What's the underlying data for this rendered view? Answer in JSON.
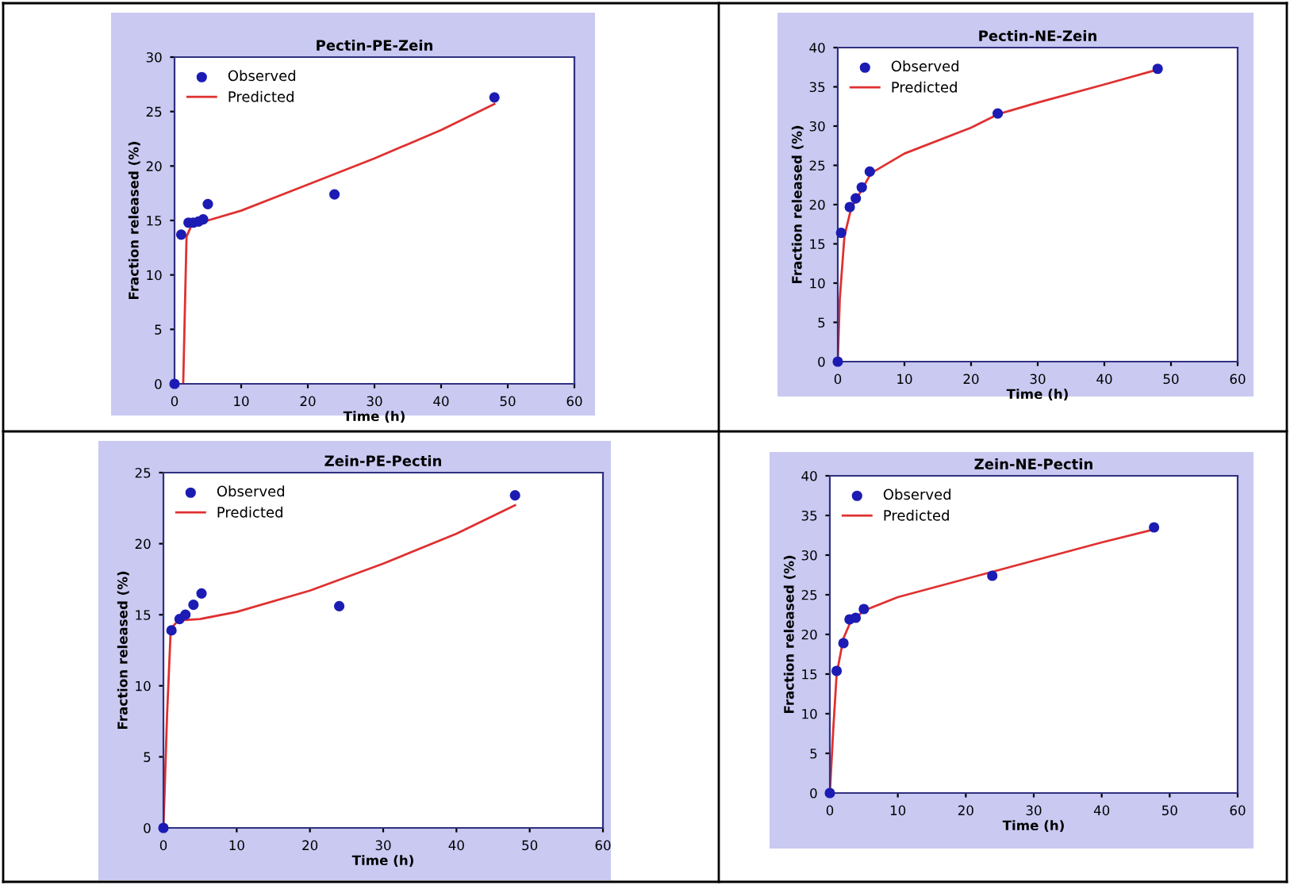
{
  "chart_data": [
    {
      "type": "scatter",
      "title": "Pectin-PE-Zein",
      "xlabel": "Time (h)",
      "ylabel": "Fraction released (%)",
      "xlim": [
        0,
        60
      ],
      "xticks": [
        0,
        10,
        20,
        30,
        40,
        50,
        60
      ],
      "ylim": [
        0,
        30
      ],
      "yticks": [
        0,
        5,
        10,
        15,
        20,
        25,
        30
      ],
      "legend": "top left",
      "grid": false,
      "series": [
        {
          "name": "Observed",
          "marker": "circle",
          "color": "#1c1cb4",
          "x": [
            0,
            1,
            2.1,
            2.8,
            3.6,
            4.3,
            5,
            24,
            48
          ],
          "values": [
            0,
            13.7,
            14.8,
            14.8,
            14.9,
            15.1,
            16.5,
            17.4,
            26.3
          ]
        },
        {
          "name": "Predicted",
          "type": "line",
          "line_style": "solid",
          "color": "#e03030",
          "x": [
            1.3,
            1.8,
            2.5,
            5,
            10,
            20,
            30,
            40,
            48
          ],
          "values": [
            0,
            13.5,
            14.5,
            15,
            15.9,
            18.3,
            20.7,
            23.3,
            25.7
          ]
        }
      ]
    },
    {
      "type": "scatter",
      "title": "Pectin-NE-Zein",
      "xlabel": "Time (h)",
      "ylabel": "Fraction released (%)",
      "xlim": [
        0,
        60
      ],
      "xticks": [
        0,
        10,
        20,
        30,
        40,
        50,
        60
      ],
      "ylim": [
        0,
        40
      ],
      "yticks": [
        0,
        5,
        10,
        15,
        20,
        25,
        30,
        35,
        40
      ],
      "legend": "top left",
      "grid": false,
      "series": [
        {
          "name": "Observed",
          "marker": "circle",
          "color": "#1c1cb4",
          "x": [
            0,
            0.5,
            1.8,
            2.7,
            3.6,
            4.8,
            24,
            48
          ],
          "values": [
            0,
            16.4,
            19.7,
            20.8,
            22.2,
            24.2,
            31.6,
            37.3
          ]
        },
        {
          "name": "Predicted",
          "type": "line",
          "line_style": "solid",
          "color": "#e03030",
          "x": [
            0,
            0.3,
            1,
            2,
            5,
            10,
            20,
            24,
            30,
            40,
            48
          ],
          "values": [
            0,
            8,
            16,
            19.5,
            24,
            26.5,
            29.8,
            31.5,
            33,
            35.3,
            37.2
          ]
        }
      ]
    },
    {
      "type": "scatter",
      "title": "Zein-PE-Pectin",
      "xlabel": "Time (h)",
      "ylabel": "Fraction released (%)",
      "xlim": [
        0,
        60
      ],
      "xticks": [
        0,
        10,
        20,
        30,
        40,
        50,
        60
      ],
      "ylim": [
        0,
        25
      ],
      "yticks": [
        0,
        5,
        10,
        15,
        20,
        25
      ],
      "legend": "top left",
      "grid": false,
      "series": [
        {
          "name": "Observed",
          "marker": "circle",
          "color": "#1c1cb4",
          "x": [
            0,
            1.1,
            2.2,
            3,
            4.1,
            5.2,
            24,
            48
          ],
          "values": [
            0,
            13.9,
            14.7,
            15,
            15.7,
            16.5,
            15.6,
            23.4
          ]
        },
        {
          "name": "Predicted",
          "type": "line",
          "line_style": "solid",
          "color": "#e03030",
          "x": [
            0,
            0.5,
            1,
            2,
            5,
            10,
            20,
            30,
            40,
            48
          ],
          "values": [
            0,
            8,
            14,
            14.6,
            14.7,
            15.2,
            16.7,
            18.6,
            20.7,
            22.7
          ]
        }
      ]
    },
    {
      "type": "scatter",
      "title": "Zein-NE-Pectin",
      "xlabel": "Time (h)",
      "ylabel": "Fraction released (%)",
      "xlim": [
        0,
        60
      ],
      "xticks": [
        0,
        10,
        20,
        30,
        40,
        50,
        60
      ],
      "ylim": [
        0,
        40
      ],
      "yticks": [
        0,
        5,
        10,
        15,
        20,
        25,
        30,
        35,
        40
      ],
      "legend": "top left",
      "grid": false,
      "series": [
        {
          "name": "Observed",
          "marker": "circle",
          "color": "#1c1cb4",
          "x": [
            0,
            1,
            2,
            2.9,
            3.8,
            5,
            23.9,
            47.7
          ],
          "values": [
            0,
            15.4,
            18.9,
            21.9,
            22.1,
            23.2,
            27.4,
            33.5
          ]
        },
        {
          "name": "Predicted",
          "type": "line",
          "line_style": "solid",
          "color": "#e03030",
          "x": [
            0,
            0.5,
            1,
            2,
            3,
            5,
            10,
            20,
            30,
            40,
            48
          ],
          "values": [
            0,
            8,
            15,
            19.5,
            21.5,
            23,
            24.7,
            27,
            29.3,
            31.6,
            33.3
          ]
        }
      ]
    }
  ]
}
